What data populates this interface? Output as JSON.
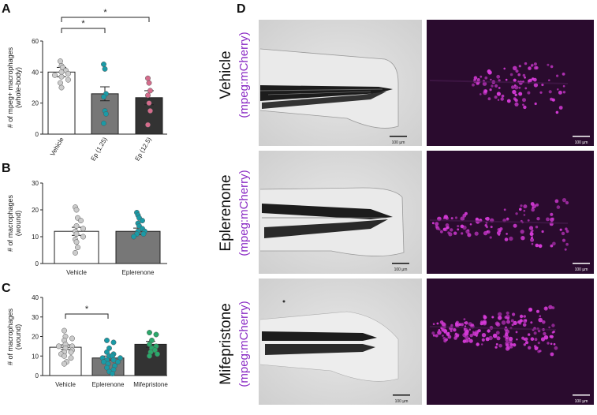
{
  "panels": {
    "A": "A",
    "B": "B",
    "C": "C",
    "D": "D"
  },
  "chart_data": [
    {
      "panel": "A",
      "type": "bar",
      "ylabel": "# of mpeg+ macrophages (whole-body)",
      "ylabel_lines": [
        "# of mpeg+ macrophages",
        "(whole-body)"
      ],
      "ylim": [
        0,
        60
      ],
      "yticks": [
        0,
        20,
        40,
        60
      ],
      "categories": [
        "Vehicle",
        "Ep (1.25)",
        "Ep (12.5)"
      ],
      "values": [
        40,
        26,
        23.5
      ],
      "errors": [
        3,
        4.5,
        4.5
      ],
      "bar_colors": [
        "#ffffff",
        "#777777",
        "#333333"
      ],
      "point_colors": [
        "#cccccc",
        "#1a9aa6",
        "#d56c8c"
      ],
      "points": [
        [
          47,
          44,
          43,
          41,
          40,
          39,
          38,
          37,
          35,
          33,
          30
        ],
        [
          45,
          42,
          26,
          24,
          15,
          13,
          7
        ],
        [
          36,
          33,
          28,
          25,
          20,
          15,
          6
        ]
      ],
      "significance": [
        {
          "from": 0,
          "to": 1,
          "label": "*"
        },
        {
          "from": 0,
          "to": 2,
          "label": "*"
        }
      ],
      "tick_labels_rotated": true
    },
    {
      "panel": "B",
      "type": "bar",
      "ylabel": "# of macrophages (wound)",
      "ylabel_lines": [
        "# of macrophages",
        "(wound)"
      ],
      "ylim": [
        0,
        30
      ],
      "yticks": [
        0,
        10,
        20,
        30
      ],
      "categories": [
        "Vehicle",
        "Eplerenone"
      ],
      "values": [
        12,
        12
      ],
      "errors": [
        1.5,
        1.2
      ],
      "bar_colors": [
        "#ffffff",
        "#777777"
      ],
      "point_colors": [
        "#cccccc",
        "#1a9aa6"
      ],
      "points": [
        [
          21,
          20,
          17,
          16,
          14,
          13,
          12,
          11,
          10,
          9,
          8,
          6,
          4
        ],
        [
          19,
          18,
          17,
          16,
          15,
          14,
          13,
          12,
          12,
          11,
          11,
          10
        ]
      ],
      "significance": [],
      "tick_labels_rotated": false
    },
    {
      "panel": "C",
      "type": "bar",
      "ylabel": "# of macrophages (wound)",
      "ylabel_lines": [
        "# of macrophages",
        "(wound)"
      ],
      "ylim": [
        0,
        40
      ],
      "yticks": [
        0,
        10,
        20,
        30,
        40
      ],
      "categories": [
        "Vehicle",
        "Eplerenone",
        "Mifepristone"
      ],
      "values": [
        14.5,
        9,
        16
      ],
      "errors": [
        1.2,
        1.0,
        1.5
      ],
      "bar_colors": [
        "#ffffff",
        "#777777",
        "#333333"
      ],
      "point_colors": [
        "#cccccc",
        "#1a9aa6",
        "#2aa86a"
      ],
      "points": [
        [
          23,
          20,
          19,
          18,
          16,
          15,
          15,
          14,
          13,
          12,
          12,
          11,
          10,
          9,
          7,
          6
        ],
        [
          18,
          17,
          14,
          12,
          11,
          10,
          10,
          9,
          9,
          8,
          8,
          7,
          7,
          6,
          5,
          4,
          3,
          2,
          1
        ],
        [
          22,
          21,
          18,
          16,
          15,
          14,
          13,
          12,
          11,
          10
        ]
      ],
      "significance": [
        {
          "from": 0,
          "to": 1,
          "label": "*"
        }
      ],
      "tick_labels_rotated": false
    }
  ],
  "panel_d": {
    "rows": [
      {
        "label": "Vehicle",
        "sublabel": "(mpeg:mCherry)"
      },
      {
        "label": "Eplerenone",
        "sublabel": "(mpeg:mCherry)"
      },
      {
        "label": "Mifepristone",
        "sublabel": "(mpeg:mCherry)"
      }
    ],
    "scale_bar": "100 µm",
    "colors": {
      "fluorescence": "#d63ad8",
      "background": "#2a0b2e",
      "brightfield": "#d8d8d8"
    }
  }
}
